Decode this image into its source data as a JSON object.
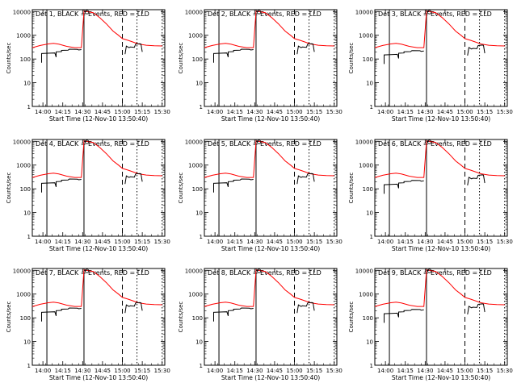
{
  "chart_data": {
    "type": "line",
    "y_scale": "log",
    "ylim": [
      1,
      12000
    ],
    "y_ticks": [
      {
        "value": 1,
        "label": "1"
      },
      {
        "value": 10,
        "label": "10"
      },
      {
        "value": 100,
        "label": "100"
      },
      {
        "value": 1000,
        "label": "1000"
      },
      {
        "value": 10000,
        "label": "10000"
      }
    ],
    "xlim": [
      "13:52",
      "15:32"
    ],
    "x_ticks": [
      "14:00",
      "14:15",
      "14:30",
      "14:45",
      "15:00",
      "15:15",
      "15:30"
    ],
    "ylabel": "Counts/sec",
    "xlabel": "Start Time (12-Nov-10 13:50:40)",
    "legend_text": "BLACK = Events, RED = LLD",
    "colors": {
      "events": "#000000",
      "lld": "#ff0000"
    },
    "vertical_markers": [
      {
        "x": "14:03",
        "style": "solid"
      },
      {
        "x": "14:31",
        "style": "solid"
      },
      {
        "x": "15:00",
        "style": "dashed"
      },
      {
        "x": "15:11",
        "style": "dotted"
      },
      {
        "x": "15:30",
        "style": "dotted"
      }
    ],
    "panels": [
      {
        "title": "Det 1",
        "lld_peak": 11000,
        "events_level": 160
      },
      {
        "title": "Det 2",
        "lld_peak": 11000,
        "events_level": 160
      },
      {
        "title": "Det 3",
        "lld_peak": 11000,
        "events_level": 140
      },
      {
        "title": "Det 4",
        "lld_peak": 11000,
        "events_level": 160
      },
      {
        "title": "Det 5",
        "lld_peak": 11000,
        "events_level": 160
      },
      {
        "title": "Det 6",
        "lld_peak": 11000,
        "events_level": 140
      },
      {
        "title": "Det 7",
        "lld_peak": 11000,
        "events_level": 160
      },
      {
        "title": "Det 8",
        "lld_peak": 11000,
        "events_level": 160
      },
      {
        "title": "Det 9",
        "lld_peak": 11000,
        "events_level": 140
      }
    ],
    "series": [
      {
        "name": "RED = LLD",
        "points": [
          [
            "13:52",
            300
          ],
          [
            "13:58",
            370
          ],
          [
            "14:04",
            430
          ],
          [
            "14:08",
            460
          ],
          [
            "14:12",
            420
          ],
          [
            "14:18",
            340
          ],
          [
            "14:24",
            300
          ],
          [
            "14:29",
            300
          ],
          [
            "14:31",
            10500
          ],
          [
            "14:38",
            9000
          ],
          [
            "14:43",
            5500
          ],
          [
            "14:48",
            3000
          ],
          [
            "14:53",
            1500
          ],
          [
            "14:57",
            1000
          ],
          [
            "15:00",
            720
          ],
          [
            "15:04",
            620
          ],
          [
            "15:08",
            520
          ],
          [
            "15:12",
            430
          ],
          [
            "15:18",
            380
          ],
          [
            "15:24",
            360
          ],
          [
            "15:30",
            355
          ]
        ]
      },
      {
        "name": "BLACK = Events",
        "points": [
          [
            "13:59",
            70
          ],
          [
            "13:59",
            170
          ],
          [
            "14:04",
            175
          ],
          [
            "14:09",
            180
          ],
          [
            "14:10",
            120
          ],
          [
            "14:10",
            200
          ],
          [
            "14:14",
            205
          ],
          [
            "14:14",
            230
          ],
          [
            "14:19",
            235
          ],
          [
            "14:20",
            260
          ],
          [
            "14:26",
            255
          ],
          [
            "14:27",
            240
          ],
          [
            "14:29",
            250
          ]
        ],
        "segments": [
          [
            [
              "14:31",
              10000
            ],
            [
              "14:33",
              10000
            ]
          ],
          [
            [
              "15:02",
              160
            ],
            [
              "15:03",
              350
            ],
            [
              "15:05",
              300
            ],
            [
              "15:06",
              320
            ],
            [
              "15:09",
              310
            ],
            [
              "15:10",
              420
            ],
            [
              "15:13",
              440
            ],
            [
              "15:14",
              430
            ],
            [
              "15:15",
              200
            ]
          ],
          [
            [
              "15:11",
              10000
            ],
            [
              "15:13",
              10000
            ]
          ]
        ]
      }
    ]
  }
}
